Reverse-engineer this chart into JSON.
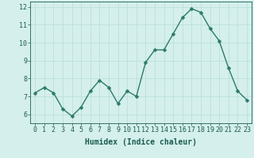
{
  "x": [
    0,
    1,
    2,
    3,
    4,
    5,
    6,
    7,
    8,
    9,
    10,
    11,
    12,
    13,
    14,
    15,
    16,
    17,
    18,
    19,
    20,
    21,
    22,
    23
  ],
  "y": [
    7.2,
    7.5,
    7.2,
    6.3,
    5.9,
    6.4,
    7.3,
    7.9,
    7.5,
    6.6,
    7.3,
    7.0,
    8.9,
    9.6,
    9.6,
    10.5,
    11.4,
    11.9,
    11.7,
    10.8,
    10.1,
    8.6,
    7.3,
    6.8
  ],
  "xlabel": "Humidex (Indice chaleur)",
  "ylim": [
    5.5,
    12.3
  ],
  "xlim": [
    -0.5,
    23.5
  ],
  "yticks": [
    6,
    7,
    8,
    9,
    10,
    11,
    12
  ],
  "xticks": [
    0,
    1,
    2,
    3,
    4,
    5,
    6,
    7,
    8,
    9,
    10,
    11,
    12,
    13,
    14,
    15,
    16,
    17,
    18,
    19,
    20,
    21,
    22,
    23
  ],
  "line_color": "#2d7a6a",
  "marker_color": "#2d7a6a",
  "bg_color": "#d4efec",
  "grid_color": "#b8ddd9",
  "axis_bg": "#d4efec",
  "xlabel_color": "#1a5c50",
  "tick_color": "#1a5c50",
  "xlabel_fontsize": 7,
  "tick_fontsize": 6,
  "line_width": 1.0,
  "marker_size": 2.5
}
